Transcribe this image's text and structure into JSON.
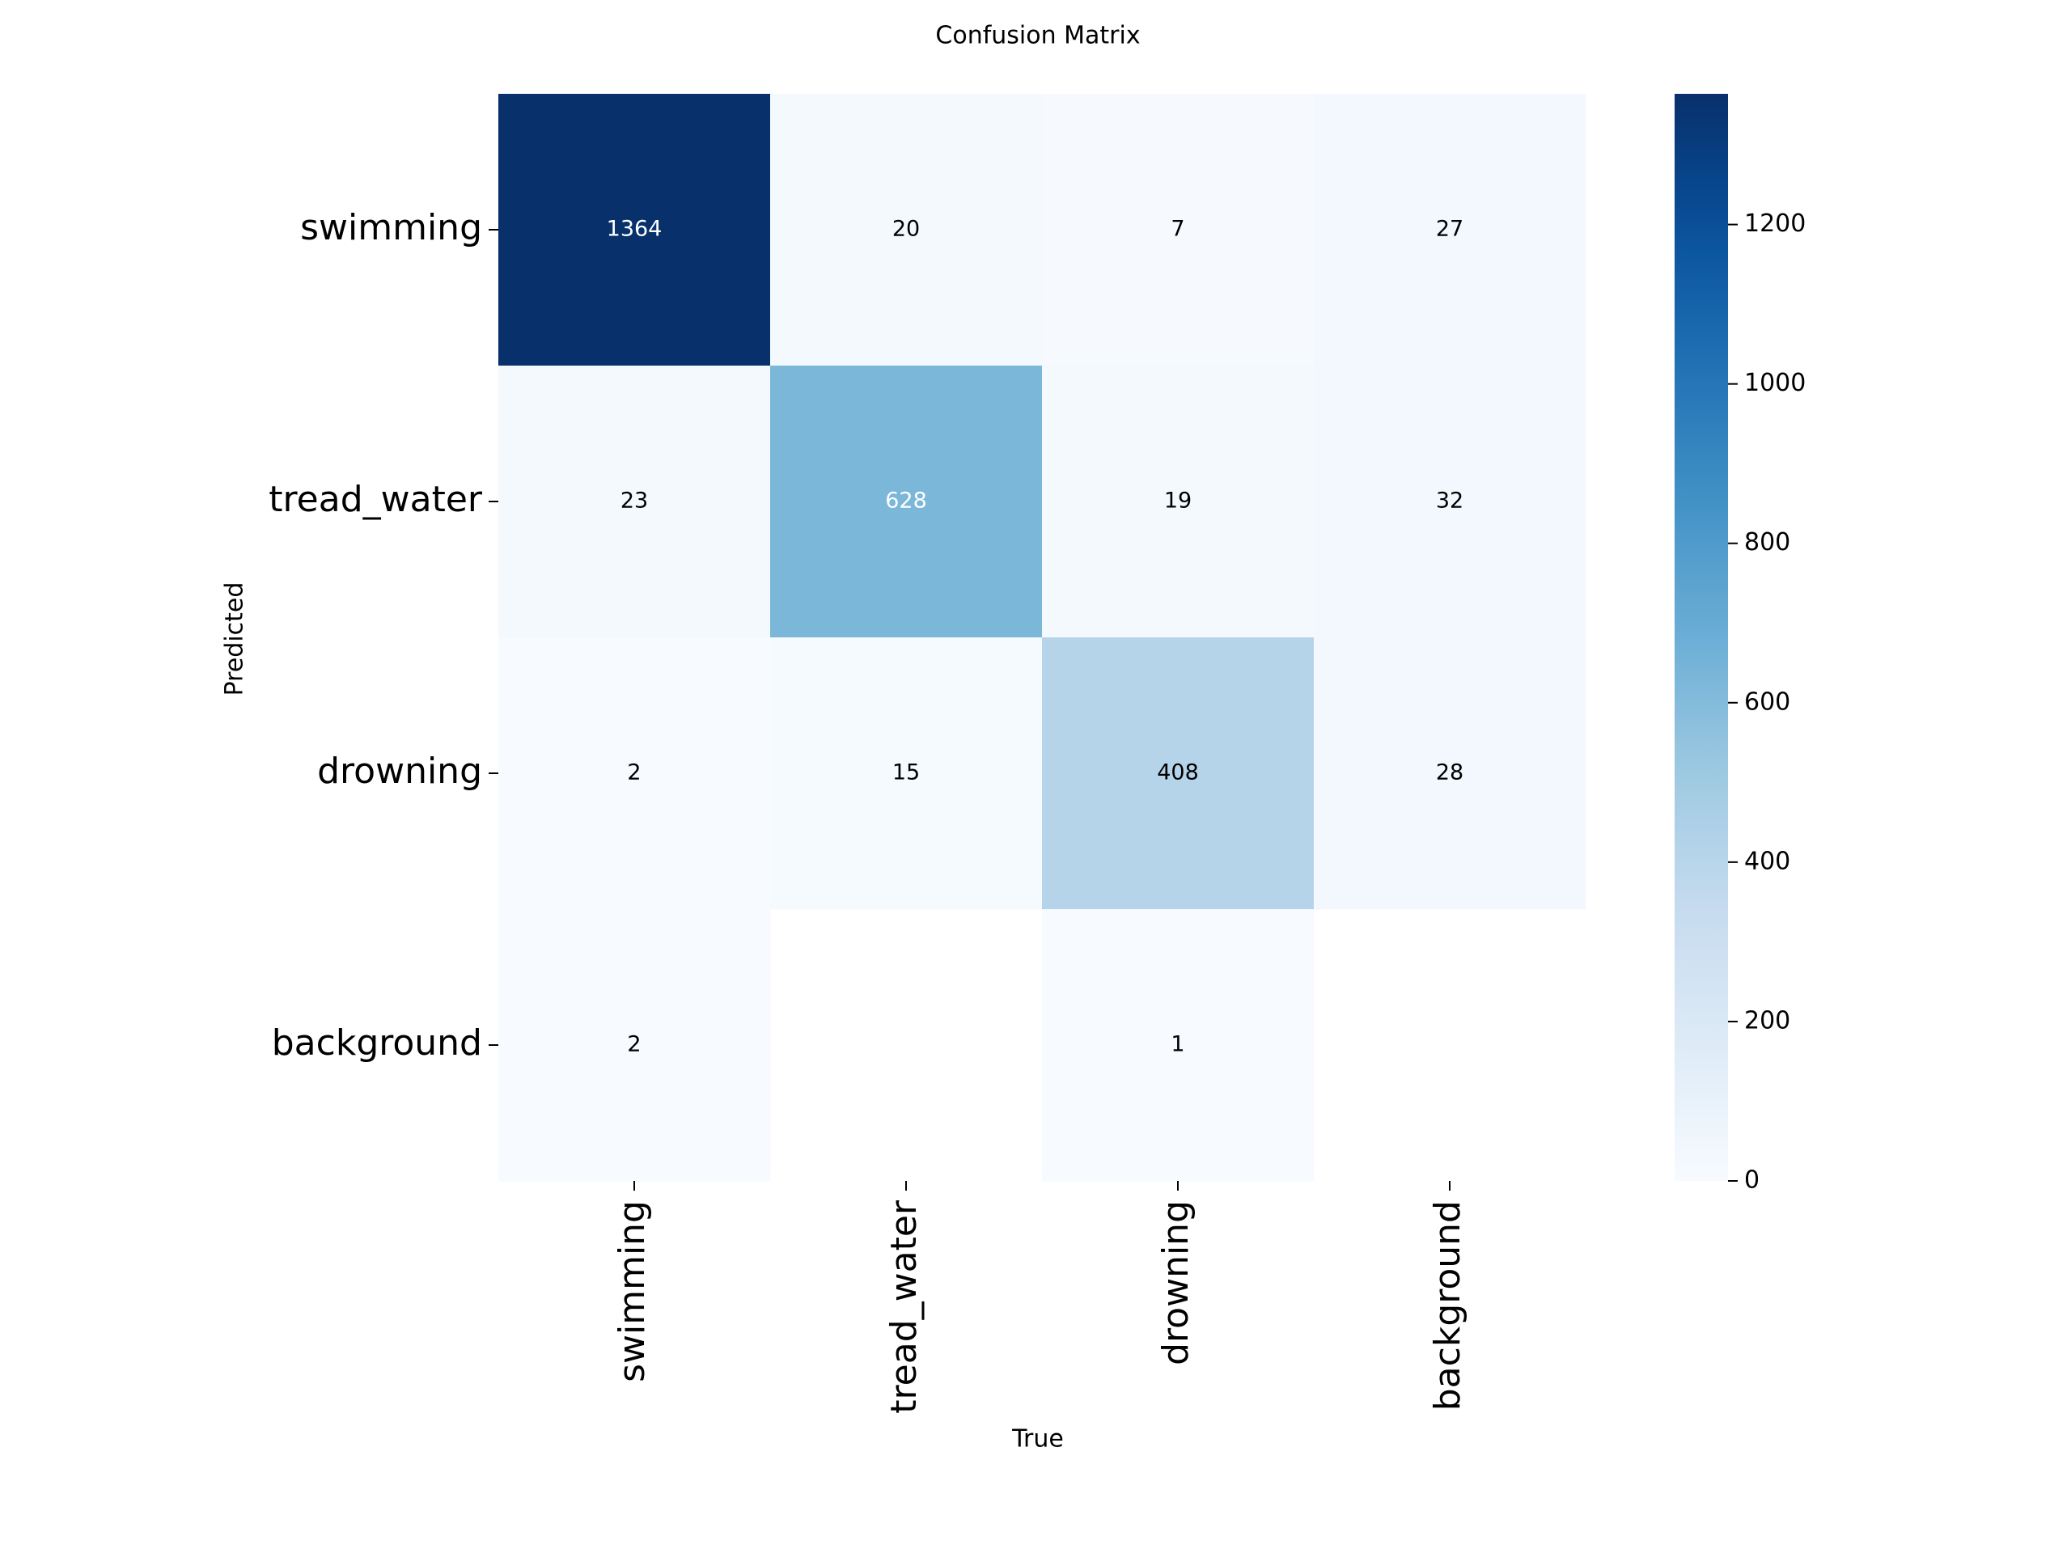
{
  "chart_data": {
    "type": "heatmap",
    "title": "Confusion Matrix",
    "xlabel": "True",
    "ylabel": "Predicted",
    "x_categories": [
      "swimming",
      "tread_water",
      "drowning",
      "background"
    ],
    "y_categories": [
      "swimming",
      "tread_water",
      "drowning",
      "background"
    ],
    "values": [
      [
        1364,
        20,
        7,
        27
      ],
      [
        23,
        628,
        19,
        32
      ],
      [
        2,
        15,
        408,
        28
      ],
      [
        2,
        null,
        1,
        null
      ]
    ],
    "colorbar": {
      "range": [
        0,
        1364
      ],
      "ticks": [
        0,
        200,
        400,
        600,
        800,
        1000,
        1200
      ],
      "tick_labels": [
        "0",
        "200",
        "400",
        "600",
        "800",
        "1000",
        "1200"
      ]
    },
    "colormap": "Blues",
    "colors": {
      "min": "#f7fbff",
      "max": "#08306b",
      "text_light": "#ffffff",
      "text_dark": "#000000"
    }
  }
}
